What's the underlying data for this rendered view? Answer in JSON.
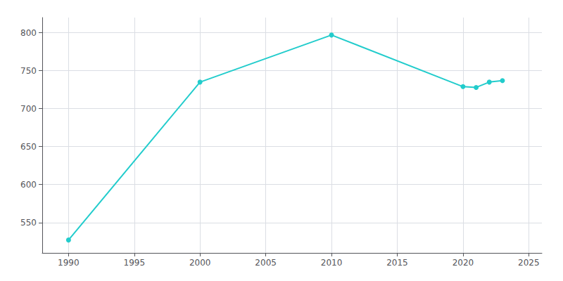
{
  "chart_data": {
    "type": "line",
    "x": [
      1990,
      2000,
      2010,
      2020,
      2021,
      2022,
      2023
    ],
    "values": [
      527,
      735,
      797,
      729,
      728,
      735,
      737
    ],
    "color": "#22CCCC",
    "marker": "circle",
    "xlim": [
      1988,
      2026
    ],
    "xticks": [
      1990,
      1995,
      2000,
      2005,
      2010,
      2015,
      2020,
      2025
    ],
    "ylim": [
      510,
      820
    ],
    "yticks": [
      550,
      600,
      650,
      700,
      750,
      800
    ],
    "grid": true
  }
}
